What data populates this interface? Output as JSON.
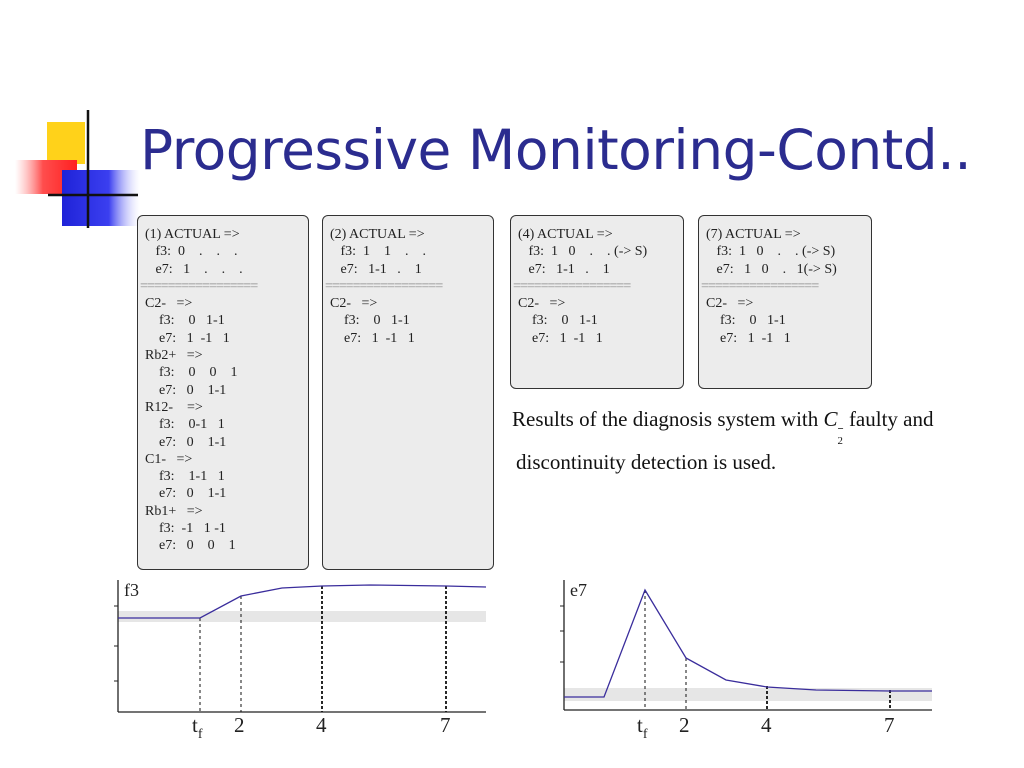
{
  "slide": {
    "title": "Progressive Monitoring-Contd.."
  },
  "panels": [
    {
      "id": "panel-1",
      "lines": [
        {
          "t": "(1) ACTUAL =>"
        },
        {
          "t": "   f3:  0    .    .    ."
        },
        {
          "t": "   e7:   1    .    .    ."
        },
        {
          "t": "=================",
          "sep": true
        },
        {
          "t": "C2-   =>"
        },
        {
          "t": "    f3:    0   1-1"
        },
        {
          "t": "    e7:   1  -1   1"
        },
        {
          "t": "Rb2+   =>"
        },
        {
          "t": "    f3:    0    0    1"
        },
        {
          "t": "    e7:   0    1-1"
        },
        {
          "t": "R12-    =>"
        },
        {
          "t": "    f3:    0-1   1"
        },
        {
          "t": "    e7:   0    1-1"
        },
        {
          "t": "C1-   =>"
        },
        {
          "t": "    f3:    1-1   1"
        },
        {
          "t": "    e7:   0    1-1"
        },
        {
          "t": "Rb1+   =>"
        },
        {
          "t": "    f3:  -1   1 -1"
        },
        {
          "t": "    e7:   0    0    1"
        }
      ]
    },
    {
      "id": "panel-2",
      "lines": [
        {
          "t": "(2) ACTUAL =>"
        },
        {
          "t": "   f3:  1    1    .    ."
        },
        {
          "t": "   e7:   1-1   .    1"
        },
        {
          "t": "=================",
          "sep": true
        },
        {
          "t": "C2-   =>"
        },
        {
          "t": "    f3:    0   1-1"
        },
        {
          "t": "    e7:   1  -1   1"
        }
      ]
    },
    {
      "id": "panel-4",
      "lines": [
        {
          "t": "(4) ACTUAL =>"
        },
        {
          "t": "   f3:  1   0    .    . (-> S)"
        },
        {
          "t": "   e7:   1-1   .    1"
        },
        {
          "t": "=================",
          "sep": true
        },
        {
          "t": "C2-   =>"
        },
        {
          "t": "    f3:    0   1-1"
        },
        {
          "t": "    e7:   1  -1   1"
        }
      ]
    },
    {
      "id": "panel-7",
      "lines": [
        {
          "t": "(7) ACTUAL =>"
        },
        {
          "t": "   f3:  1   0    .    . (-> S)"
        },
        {
          "t": "   e7:   1   0    .   1(-> S)"
        },
        {
          "t": "=================",
          "sep": true
        },
        {
          "t": "C2-   =>"
        },
        {
          "t": "    f3:    0   1-1"
        },
        {
          "t": "    e7:   1  -1   1"
        }
      ]
    }
  ],
  "caption": {
    "prefix": "Results of the diagnosis system with",
    "term_base": "C",
    "term_sub": "2",
    "term_sup": "−",
    "suffix": "faulty and",
    "line2": "discontinuity detection is used."
  },
  "plots": [
    {
      "id": "plot-f3",
      "label": "f3",
      "ticks": [
        {
          "base": "t",
          "sub": "f"
        },
        {
          "base": "2",
          "sub": ""
        },
        {
          "base": "4",
          "sub": ""
        },
        {
          "base": "7",
          "sub": ""
        }
      ],
      "colors": {
        "signal": "#3a2d9c",
        "band": "#e6e6e6",
        "axis": "#222222"
      }
    },
    {
      "id": "plot-e7",
      "label": "e7",
      "ticks": [
        {
          "base": "t",
          "sub": "f"
        },
        {
          "base": "2",
          "sub": ""
        },
        {
          "base": "4",
          "sub": ""
        },
        {
          "base": "7",
          "sub": ""
        }
      ],
      "colors": {
        "signal": "#3a2d9c",
        "band": "#e6e6e6",
        "axis": "#222222"
      }
    }
  ],
  "colors": {
    "title": "#2b2c8f",
    "panel_bg": "#ececec",
    "logo_yellow": "#ffd700",
    "logo_red": "#ff3b3b",
    "logo_blue": "#2a2ee0"
  }
}
